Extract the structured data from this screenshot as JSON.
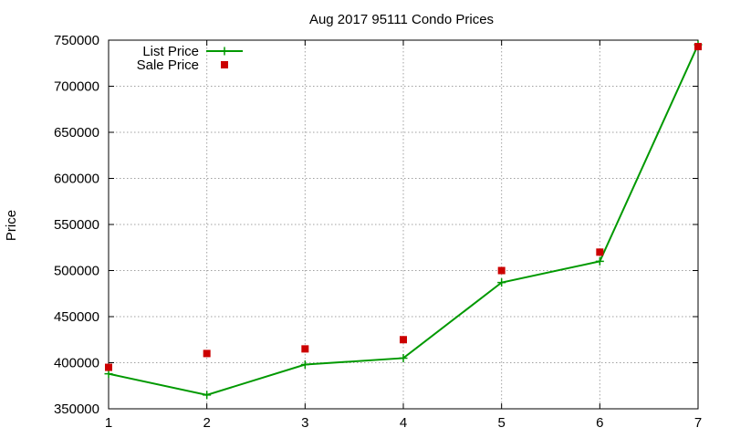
{
  "chart_data": {
    "type": "line",
    "title": "Aug 2017 95111 Condo Prices",
    "xlabel": "",
    "ylabel": "Price",
    "x": [
      1,
      2,
      3,
      4,
      5,
      6,
      7
    ],
    "xlim": [
      1,
      7
    ],
    "ylim": [
      350000,
      750000
    ],
    "xticks": [
      "1",
      "2",
      "3",
      "4",
      "5",
      "6",
      "7"
    ],
    "yticks": [
      "350000",
      "400000",
      "450000",
      "500000",
      "550000",
      "600000",
      "650000",
      "700000",
      "750000"
    ],
    "grid": true,
    "legend_position": "top-left",
    "series": [
      {
        "name": "List Price",
        "style": "line-points",
        "marker": "plus",
        "color": "#009900",
        "values": [
          388000,
          365000,
          398000,
          405000,
          487000,
          510000,
          745000
        ]
      },
      {
        "name": "Sale Price",
        "style": "points",
        "marker": "square",
        "color": "#cc0000",
        "values": [
          395000,
          410000,
          415000,
          425000,
          500000,
          520000,
          743000
        ]
      }
    ]
  }
}
